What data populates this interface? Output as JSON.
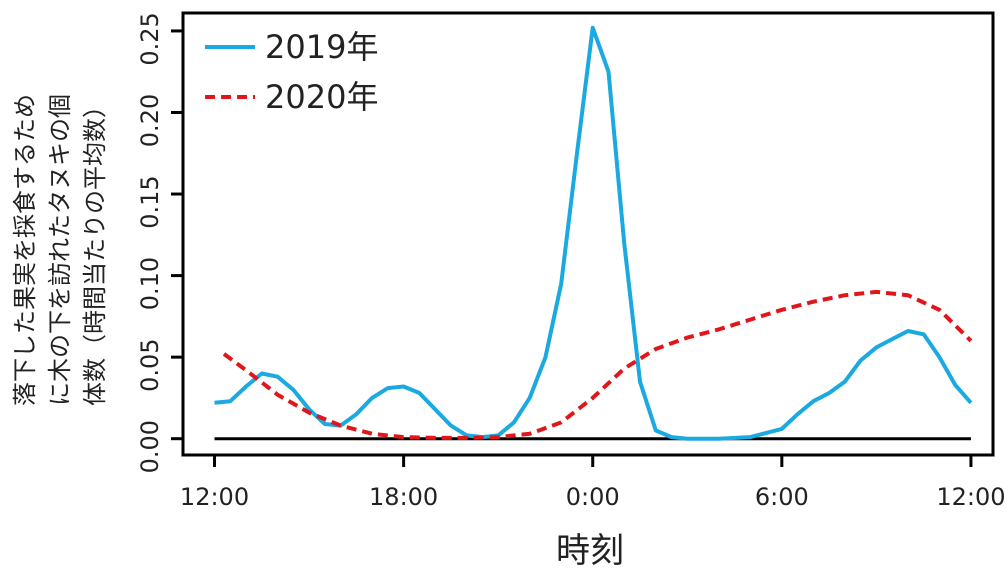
{
  "chart_data": {
    "type": "line",
    "x_label": "時刻",
    "y_label": [
      "落下した果実を採食するため",
      "に木の下を訪れたタヌキの個",
      "体数（時間当たりの平均数）"
    ],
    "xlim": [
      -1,
      24.7
    ],
    "xticks": [
      {
        "value": 0,
        "label": "12:00"
      },
      {
        "value": 6,
        "label": "18:00"
      },
      {
        "value": 12,
        "label": "0:00"
      },
      {
        "value": 18,
        "label": "6:00"
      },
      {
        "value": 24,
        "label": "12:00"
      }
    ],
    "ylim": [
      -0.01,
      0.261
    ],
    "yticks": [
      {
        "value": 0,
        "label": "0.00"
      },
      {
        "value": 0.05,
        "label": "0.05"
      },
      {
        "value": 0.1,
        "label": "0.10"
      },
      {
        "value": 0.15,
        "label": "0.15"
      },
      {
        "value": 0.2,
        "label": "0.20"
      },
      {
        "value": 0.25,
        "label": "0.25"
      }
    ],
    "legend": "top-left",
    "series": [
      {
        "name": "2019年",
        "color": "#1aa9e0",
        "dash": false,
        "x": [
          0,
          0.5,
          1,
          1.5,
          2,
          2.5,
          3,
          3.5,
          4,
          4.5,
          5,
          5.5,
          6,
          6.5,
          7,
          7.5,
          8,
          8.5,
          9,
          9.5,
          10,
          10.5,
          11,
          11.5,
          12,
          12.5,
          13,
          13.5,
          14,
          14.5,
          15,
          16,
          17,
          18,
          18.5,
          19,
          19.5,
          20,
          20.5,
          21,
          21.5,
          22,
          22.5,
          23,
          23.5,
          24
        ],
        "values": [
          0.022,
          0.023,
          0.032,
          0.04,
          0.038,
          0.03,
          0.018,
          0.009,
          0.008,
          0.015,
          0.025,
          0.031,
          0.032,
          0.028,
          0.018,
          0.008,
          0.002,
          0.001,
          0.002,
          0.01,
          0.025,
          0.05,
          0.095,
          0.175,
          0.252,
          0.225,
          0.12,
          0.035,
          0.005,
          0.001,
          0,
          0,
          0.001,
          0.006,
          0.015,
          0.023,
          0.028,
          0.035,
          0.048,
          0.056,
          0.061,
          0.066,
          0.064,
          0.05,
          0.033,
          0.022
        ]
      },
      {
        "name": "2020年",
        "color": "#e0161b",
        "dash": true,
        "x": [
          0.3,
          1,
          2,
          3,
          4,
          5,
          6,
          7,
          8,
          9,
          10,
          11,
          12,
          13,
          14,
          15,
          16,
          17,
          18,
          19,
          20,
          21,
          22,
          23,
          24
        ],
        "values": [
          0.052,
          0.042,
          0.027,
          0.016,
          0.008,
          0.003,
          0.001,
          0.0005,
          0.0005,
          0.001,
          0.003,
          0.01,
          0.025,
          0.043,
          0.055,
          0.062,
          0.067,
          0.073,
          0.079,
          0.084,
          0.088,
          0.09,
          0.088,
          0.079,
          0.06
        ]
      }
    ]
  }
}
